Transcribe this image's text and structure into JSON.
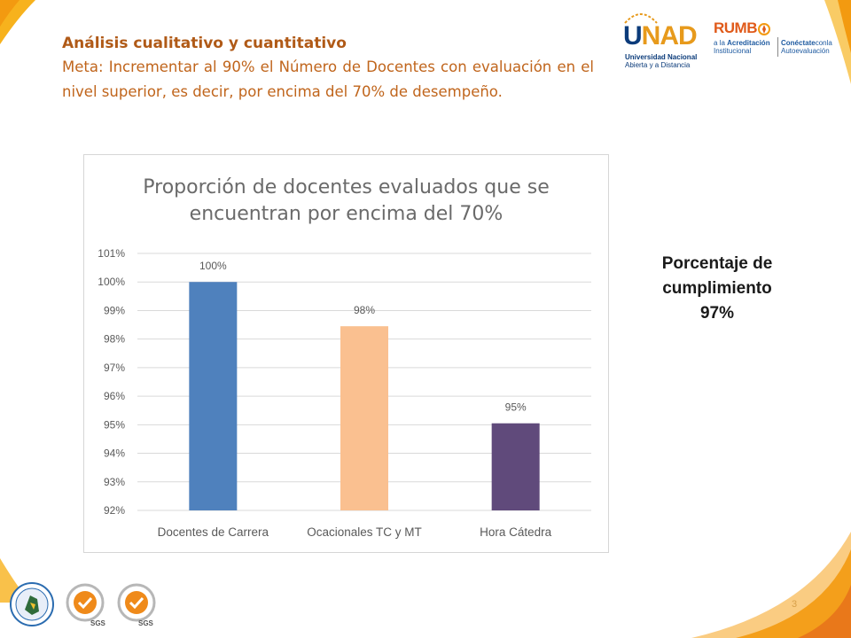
{
  "intro": {
    "title": "Análisis cualitativo y cuantitativo",
    "body": "Meta: Incrementar al 90% el Número de Docentes con evaluación en el nivel superior, es decir, por encima del 70% de desempeño."
  },
  "logos": {
    "unad_u": "U",
    "unad_rest": "NAD",
    "unad_sub1": "Universidad Nacional",
    "unad_sub2": "Abierta y a Distancia",
    "rumbo": "RUMB",
    "rumbo_sub1_a": "a la ",
    "rumbo_sub1_b": "Acreditación",
    "rumbo_sub1_c": "Institucional",
    "rumbo_sub2_a": "Conéctate",
    "rumbo_sub2_b": "conla",
    "rumbo_sub2_c": "Autoevaluación",
    "sgs1": "SGS",
    "sgs2": "SGS"
  },
  "chart_data": {
    "type": "bar",
    "title_line1": "Proporción de docentes evaluados que se",
    "title_line2": "encuentran por encima del 70%",
    "categories": [
      "Docentes de Carrera",
      "Ocacionales TC y MT",
      "Hora Cátedra"
    ],
    "values": [
      100,
      98.45,
      95.05
    ],
    "data_labels": [
      "100%",
      "98%",
      "95%"
    ],
    "colors": [
      "#4f81bd",
      "#fac090",
      "#604a7b"
    ],
    "ylim": [
      92,
      101
    ],
    "yticks": [
      "92%",
      "93%",
      "94%",
      "95%",
      "96%",
      "97%",
      "98%",
      "99%",
      "100%",
      "101%"
    ],
    "grid": true,
    "xlabel": "",
    "ylabel": ""
  },
  "callout": {
    "line1": "Porcentaje de",
    "line2": "cumplimiento",
    "line3": "97%"
  },
  "footer": {
    "page_number": "3"
  }
}
